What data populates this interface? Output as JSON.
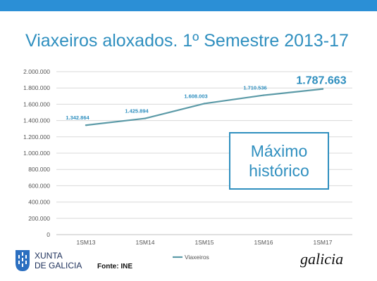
{
  "header": {
    "accent_color": "#2b8fd6"
  },
  "title": "Viaxeiros aloxados. 1º Semestre 2013-17",
  "chart_data": {
    "type": "line",
    "categories": [
      "1SM13",
      "1SM14",
      "1SM15",
      "1SM16",
      "1SM17"
    ],
    "series": [
      {
        "name": "Viaxeiros",
        "values": [
          1342864,
          1425894,
          1608003,
          1710536,
          1787663
        ],
        "color": "#5b9aa7"
      }
    ],
    "data_labels": [
      "1.342.864",
      "1.425.894",
      "1.608.003",
      "1.710.536",
      "1.787.663"
    ],
    "y_tick_labels": [
      "0",
      "200.000",
      "400.000",
      "600.000",
      "800.000",
      "1.000.000",
      "1.200.000",
      "1.400.000",
      "1.600.000",
      "1.800.000",
      "2.000.000"
    ],
    "ylim": [
      0,
      2000000
    ],
    "ytick_step": 200000,
    "grid": true,
    "legend": "bottom-center",
    "highlight_last_label": true,
    "label_color": "#2f8fbf"
  },
  "callout": {
    "line1": "Máximo",
    "line2": "histórico"
  },
  "footer": {
    "logo_line1": "XUNTA",
    "logo_line2": "DE GALICIA",
    "source": "Fonte: INE",
    "brand": "galicia"
  }
}
